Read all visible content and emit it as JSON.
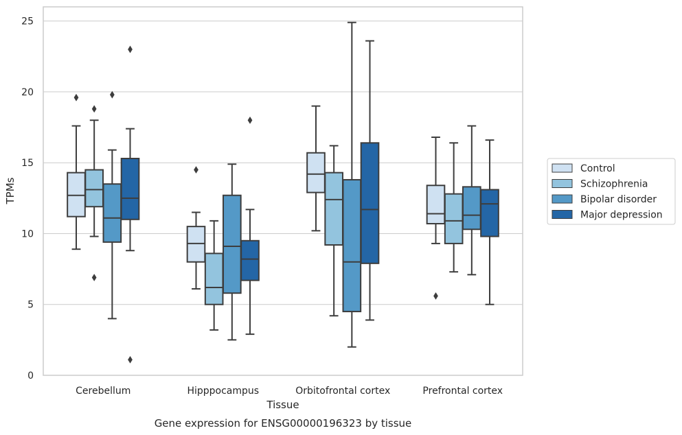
{
  "chart_data": {
    "type": "box",
    "title": "",
    "xlabel": "Tissue",
    "ylabel": "TPMs",
    "caption": "Gene expression for ENSG00000196323 by tissue",
    "categories": [
      "Cerebellum",
      "Hipppocampus",
      "Orbitofrontal cortex",
      "Prefrontal cortex"
    ],
    "ylim": [
      0,
      26
    ],
    "yticks": [
      "0",
      "5",
      "10",
      "15",
      "20",
      "25"
    ],
    "grid": "horizontal",
    "legend_placement": "center-right outside",
    "series": [
      {
        "name": "Control",
        "color": "#cfe1f2",
        "boxes": [
          {
            "whisker_low": 8.9,
            "q1": 11.2,
            "median": 12.7,
            "q3": 14.3,
            "whisker_high": 17.6,
            "outliers": [
              19.6
            ]
          },
          {
            "whisker_low": 6.1,
            "q1": 8.0,
            "median": 9.3,
            "q3": 10.5,
            "whisker_high": 11.5,
            "outliers": [
              14.5
            ]
          },
          {
            "whisker_low": 10.2,
            "q1": 12.9,
            "median": 14.2,
            "q3": 15.7,
            "whisker_high": 19.0,
            "outliers": []
          },
          {
            "whisker_low": 9.3,
            "q1": 10.7,
            "median": 11.4,
            "q3": 13.4,
            "whisker_high": 16.8,
            "outliers": [
              5.6
            ]
          }
        ]
      },
      {
        "name": "Schizophrenia",
        "color": "#93c4de",
        "boxes": [
          {
            "whisker_low": 9.8,
            "q1": 11.9,
            "median": 13.1,
            "q3": 14.5,
            "whisker_high": 18.0,
            "outliers": [
              18.8,
              6.9
            ]
          },
          {
            "whisker_low": 3.2,
            "q1": 5.0,
            "median": 6.2,
            "q3": 8.6,
            "whisker_high": 10.9,
            "outliers": []
          },
          {
            "whisker_low": 4.2,
            "q1": 9.2,
            "median": 12.4,
            "q3": 14.3,
            "whisker_high": 16.2,
            "outliers": []
          },
          {
            "whisker_low": 7.3,
            "q1": 9.3,
            "median": 10.9,
            "q3": 12.8,
            "whisker_high": 16.4,
            "outliers": []
          }
        ]
      },
      {
        "name": "Bipolar disorder",
        "color": "#5499c7",
        "boxes": [
          {
            "whisker_low": 4.0,
            "q1": 9.4,
            "median": 11.1,
            "q3": 13.5,
            "whisker_high": 15.9,
            "outliers": [
              19.8
            ]
          },
          {
            "whisker_low": 2.5,
            "q1": 5.8,
            "median": 9.1,
            "q3": 12.7,
            "whisker_high": 14.9,
            "outliers": []
          },
          {
            "whisker_low": 2.0,
            "q1": 4.5,
            "median": 8.0,
            "q3": 13.8,
            "whisker_high": 24.9,
            "outliers": []
          },
          {
            "whisker_low": 7.1,
            "q1": 10.3,
            "median": 11.3,
            "q3": 13.3,
            "whisker_high": 17.6,
            "outliers": []
          }
        ]
      },
      {
        "name": "Major depression",
        "color": "#2466a6",
        "boxes": [
          {
            "whisker_low": 8.8,
            "q1": 11.0,
            "median": 12.5,
            "q3": 15.3,
            "whisker_high": 17.4,
            "outliers": [
              23.0,
              1.1
            ]
          },
          {
            "whisker_low": 2.9,
            "q1": 6.7,
            "median": 8.2,
            "q3": 9.5,
            "whisker_high": 11.7,
            "outliers": [
              18.0
            ]
          },
          {
            "whisker_low": 3.9,
            "q1": 7.9,
            "median": 11.7,
            "q3": 16.4,
            "whisker_high": 23.6,
            "outliers": []
          },
          {
            "whisker_low": 5.0,
            "q1": 9.8,
            "median": 12.1,
            "q3": 13.1,
            "whisker_high": 16.6,
            "outliers": []
          }
        ]
      }
    ]
  }
}
